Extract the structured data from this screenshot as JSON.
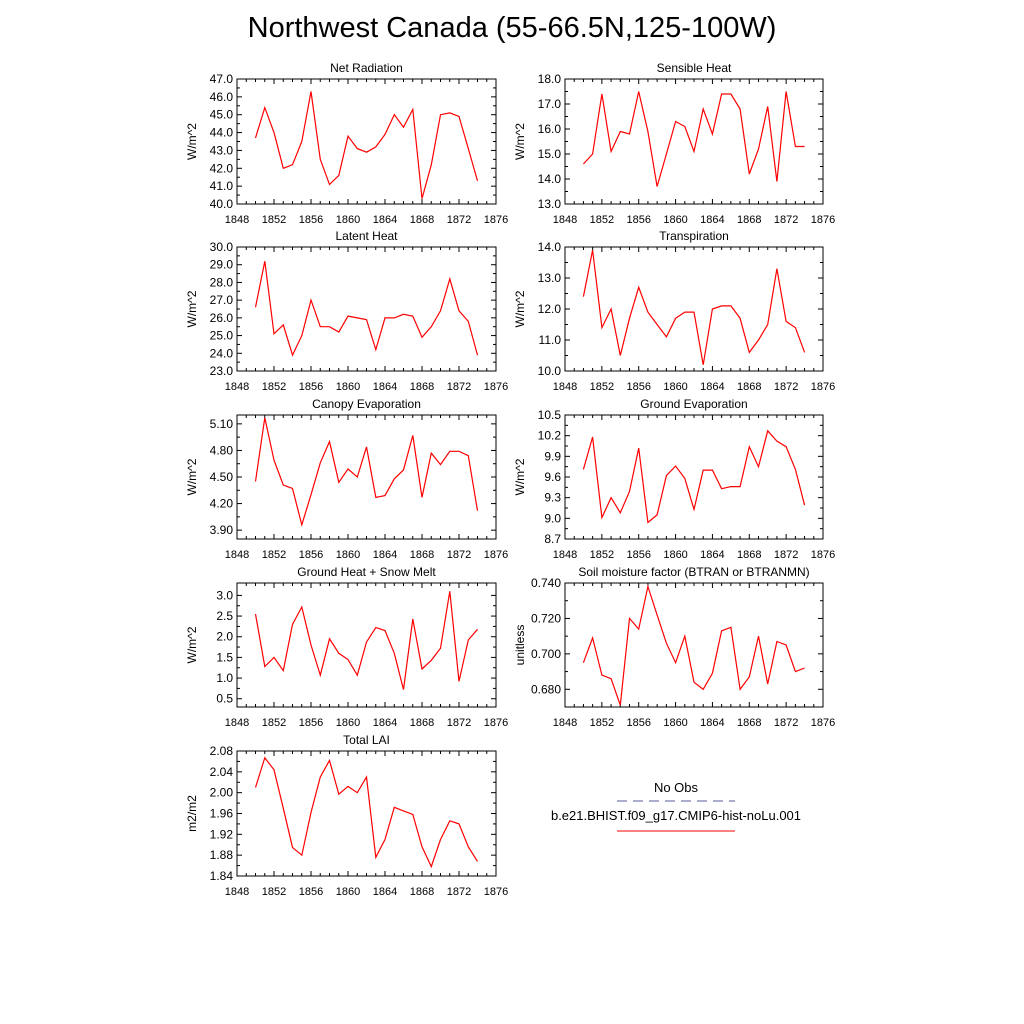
{
  "title": "Northwest Canada (55-66.5N,125-100W)",
  "colors": {
    "model": "#ff0000",
    "obs": "#5a5a9a",
    "axis": "#000000"
  },
  "legend": {
    "obs_label": "No Obs",
    "model_label": "b.e21.BHIST.f09_g17.CMIP6-hist-noLu.001"
  },
  "years": [
    1850,
    1851,
    1852,
    1853,
    1854,
    1855,
    1856,
    1857,
    1858,
    1859,
    1860,
    1861,
    1862,
    1863,
    1864,
    1865,
    1866,
    1867,
    1868,
    1869,
    1870,
    1871,
    1872,
    1873,
    1874
  ],
  "chart_data": [
    {
      "type": "line",
      "title": "Net Radiation",
      "ylabel": "W/m^2",
      "xlim": [
        1848,
        1876
      ],
      "ylim": [
        40.0,
        47.0
      ],
      "xticks": [
        "1848",
        "1852",
        "1856",
        "1860",
        "1864",
        "1868",
        "1872",
        "1876"
      ],
      "yticks": [
        "40.0",
        "41.0",
        "42.0",
        "43.0",
        "44.0",
        "45.0",
        "46.0",
        "47.0"
      ],
      "series": [
        {
          "values": [
            43.7,
            45.4,
            44.0,
            42.0,
            42.2,
            43.5,
            46.3,
            42.5,
            41.1,
            41.6,
            43.8,
            43.1,
            42.9,
            43.2,
            43.9,
            45.0,
            44.3,
            45.3,
            40.3,
            42.2,
            45.0,
            45.1,
            44.9,
            43.1,
            41.3
          ]
        }
      ]
    },
    {
      "type": "line",
      "title": "Sensible Heat",
      "ylabel": "W/m^2",
      "xlim": [
        1848,
        1876
      ],
      "ylim": [
        13.0,
        18.0
      ],
      "xticks": [
        "1848",
        "1852",
        "1856",
        "1860",
        "1864",
        "1868",
        "1872",
        "1876"
      ],
      "yticks": [
        "13.0",
        "14.0",
        "15.0",
        "16.0",
        "17.0",
        "18.0"
      ],
      "series": [
        {
          "values": [
            14.6,
            15.0,
            17.4,
            15.1,
            15.9,
            15.8,
            17.5,
            15.9,
            13.7,
            15.0,
            16.3,
            16.1,
            15.1,
            16.8,
            15.8,
            17.4,
            17.4,
            16.8,
            14.2,
            15.2,
            16.9,
            13.9,
            17.5,
            15.3,
            15.3
          ]
        }
      ]
    },
    {
      "type": "line",
      "title": "Latent Heat",
      "ylabel": "W/m^2",
      "xlim": [
        1848,
        1876
      ],
      "ylim": [
        23.0,
        30.0
      ],
      "xticks": [
        "1848",
        "1852",
        "1856",
        "1860",
        "1864",
        "1868",
        "1872",
        "1876"
      ],
      "yticks": [
        "23.0",
        "24.0",
        "25.0",
        "26.0",
        "27.0",
        "28.0",
        "29.0",
        "30.0"
      ],
      "series": [
        {
          "values": [
            26.6,
            29.2,
            25.1,
            25.6,
            23.9,
            25.0,
            27.0,
            25.5,
            25.5,
            25.2,
            26.1,
            26.0,
            25.9,
            24.2,
            26.0,
            26.0,
            26.2,
            26.1,
            24.9,
            25.5,
            26.4,
            28.2,
            26.4,
            25.8,
            23.9
          ]
        }
      ]
    },
    {
      "type": "line",
      "title": "Transpiration",
      "ylabel": "W/m^2",
      "xlim": [
        1848,
        1876
      ],
      "ylim": [
        10.0,
        14.0
      ],
      "xticks": [
        "1848",
        "1852",
        "1856",
        "1860",
        "1864",
        "1868",
        "1872",
        "1876"
      ],
      "yticks": [
        "10.0",
        "11.0",
        "12.0",
        "13.0",
        "14.0"
      ],
      "series": [
        {
          "values": [
            12.4,
            13.9,
            11.4,
            12.0,
            10.5,
            11.7,
            12.7,
            11.9,
            11.5,
            11.1,
            11.7,
            11.9,
            11.9,
            10.2,
            12.0,
            12.1,
            12.1,
            11.7,
            10.6,
            11.0,
            11.5,
            13.3,
            11.6,
            11.4,
            10.6
          ]
        }
      ]
    },
    {
      "type": "line",
      "title": "Canopy Evaporation",
      "ylabel": "W/m^2",
      "xlim": [
        1848,
        1876
      ],
      "ylim": [
        3.8,
        5.2
      ],
      "xticks": [
        "1848",
        "1852",
        "1856",
        "1860",
        "1864",
        "1868",
        "1872",
        "1876"
      ],
      "yticks": [
        "3.90",
        "4.20",
        "4.50",
        "4.80",
        "5.10"
      ],
      "series": [
        {
          "values": [
            4.45,
            5.17,
            4.69,
            4.41,
            4.37,
            3.96,
            4.3,
            4.66,
            4.9,
            4.44,
            4.59,
            4.5,
            4.84,
            4.27,
            4.29,
            4.48,
            4.58,
            4.97,
            4.27,
            4.77,
            4.64,
            4.79,
            4.79,
            4.74,
            4.12
          ]
        }
      ]
    },
    {
      "type": "line",
      "title": "Ground Evaporation",
      "ylabel": "W/m^2",
      "xlim": [
        1848,
        1876
      ],
      "ylim": [
        8.7,
        10.5
      ],
      "xticks": [
        "1848",
        "1852",
        "1856",
        "1860",
        "1864",
        "1868",
        "1872",
        "1876"
      ],
      "yticks": [
        "8.7",
        "9.0",
        "9.3",
        "9.6",
        "9.9",
        "10.2",
        "10.5"
      ],
      "series": [
        {
          "values": [
            9.71,
            10.18,
            9.01,
            9.3,
            9.08,
            9.39,
            10.02,
            8.94,
            9.05,
            9.62,
            9.76,
            9.58,
            9.13,
            9.7,
            9.7,
            9.43,
            9.46,
            9.46,
            10.04,
            9.75,
            10.27,
            10.12,
            10.04,
            9.71,
            9.19
          ]
        }
      ]
    },
    {
      "type": "line",
      "title": "Ground Heat + Snow Melt",
      "ylabel": "W/m^2",
      "xlim": [
        1848,
        1876
      ],
      "ylim": [
        0.3,
        3.3
      ],
      "xticks": [
        "1848",
        "1852",
        "1856",
        "1860",
        "1864",
        "1868",
        "1872",
        "1876"
      ],
      "yticks": [
        "0.5",
        "1.0",
        "1.5",
        "2.0",
        "2.5",
        "3.0"
      ],
      "series": [
        {
          "values": [
            2.55,
            1.28,
            1.5,
            1.18,
            2.3,
            2.72,
            1.8,
            1.07,
            1.95,
            1.6,
            1.45,
            1.07,
            1.87,
            2.22,
            2.15,
            1.6,
            0.72,
            2.43,
            1.22,
            1.43,
            1.72,
            3.1,
            0.92,
            1.92,
            2.18
          ]
        }
      ]
    },
    {
      "type": "line",
      "title": "Soil moisture factor (BTRAN or BTRANMN)",
      "ylabel": "unitless",
      "xlim": [
        1848,
        1876
      ],
      "ylim": [
        0.67,
        0.74
      ],
      "xticks": [
        "1848",
        "1852",
        "1856",
        "1860",
        "1864",
        "1868",
        "1872",
        "1876"
      ],
      "yticks": [
        "0.680",
        "0.700",
        "0.720",
        "0.740"
      ],
      "series": [
        {
          "values": [
            0.695,
            0.709,
            0.688,
            0.686,
            0.671,
            0.72,
            0.714,
            0.738,
            0.722,
            0.706,
            0.695,
            0.71,
            0.684,
            0.68,
            0.689,
            0.713,
            0.715,
            0.68,
            0.687,
            0.71,
            0.683,
            0.707,
            0.705,
            0.69,
            0.692
          ]
        }
      ]
    },
    {
      "type": "line",
      "title": "Total LAI",
      "ylabel": "m2/m2",
      "xlim": [
        1848,
        1876
      ],
      "ylim": [
        1.84,
        2.08
      ],
      "xticks": [
        "1848",
        "1852",
        "1856",
        "1860",
        "1864",
        "1868",
        "1872",
        "1876"
      ],
      "yticks": [
        "1.84",
        "1.88",
        "1.92",
        "1.96",
        "2.00",
        "2.04",
        "2.08"
      ],
      "series": [
        {
          "values": [
            2.01,
            2.067,
            2.044,
            1.97,
            1.895,
            1.88,
            1.962,
            2.03,
            2.062,
            1.997,
            2.012,
            2.0,
            2.03,
            1.876,
            1.91,
            1.972,
            1.965,
            1.958,
            1.896,
            1.858,
            1.91,
            1.946,
            1.94,
            1.896,
            1.868
          ]
        }
      ]
    }
  ]
}
